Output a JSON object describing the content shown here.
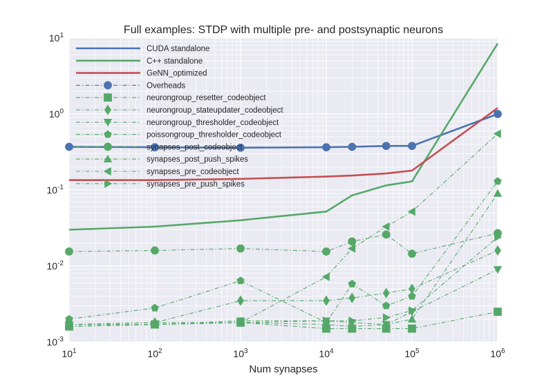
{
  "chart_data": {
    "type": "line",
    "title": "Full examples: STDP with multiple pre- and postsynaptic neurons",
    "xlabel": "Num synapses",
    "ylabel": "",
    "xscale": "log",
    "yscale": "log",
    "xlim": [
      10,
      1000000
    ],
    "ylim": [
      0.001,
      10
    ],
    "grid": true,
    "legend_position": "top-left",
    "x_ticks": [
      {
        "base": "10",
        "exp": "1"
      },
      {
        "base": "10",
        "exp": "2"
      },
      {
        "base": "10",
        "exp": "3"
      },
      {
        "base": "10",
        "exp": "4"
      },
      {
        "base": "10",
        "exp": "5"
      },
      {
        "base": "10",
        "exp": "6"
      }
    ],
    "y_ticks": [
      {
        "base": "10",
        "exp": "-3"
      },
      {
        "base": "10",
        "exp": "-2"
      },
      {
        "base": "10",
        "exp": "-1"
      },
      {
        "base": "10",
        "exp": "0"
      },
      {
        "base": "10",
        "exp": "1"
      }
    ],
    "colors": {
      "blue": "#4c72b0",
      "green": "#55a868",
      "red": "#c44e52",
      "plot_bg": "#eaeaf2"
    },
    "series": [
      {
        "name": "CUDA standalone",
        "color": "#4c72b0",
        "style": "solid",
        "marker": "none",
        "x": [
          10,
          100,
          1000,
          10000,
          20000,
          50000,
          100000,
          1000000
        ],
        "y": [
          0.37,
          0.365,
          0.36,
          0.365,
          0.37,
          0.38,
          0.38,
          1.0
        ]
      },
      {
        "name": "C++ standalone",
        "color": "#55a868",
        "style": "solid",
        "marker": "none",
        "x": [
          10,
          100,
          1000,
          10000,
          20000,
          50000,
          100000,
          1000000
        ],
        "y": [
          0.03,
          0.033,
          0.04,
          0.052,
          0.085,
          0.115,
          0.13,
          8.5
        ]
      },
      {
        "name": "GeNN_optimized",
        "color": "#c44e52",
        "style": "solid",
        "marker": "none",
        "x": [
          10,
          100,
          1000,
          10000,
          20000,
          50000,
          100000,
          1000000
        ],
        "y": [
          0.135,
          0.135,
          0.14,
          0.15,
          0.155,
          0.165,
          0.18,
          1.2
        ]
      },
      {
        "name": "Overheads",
        "color": "#4c72b0",
        "style": "dashdot",
        "marker": "circle",
        "x": [
          10,
          100,
          1000,
          10000,
          20000,
          50000,
          100000,
          1000000
        ],
        "y": [
          0.37,
          0.365,
          0.36,
          0.365,
          0.37,
          0.38,
          0.38,
          1.0
        ]
      },
      {
        "name": "neurongroup_resetter_codeobject",
        "color": "#55a868",
        "style": "dashdot",
        "marker": "square",
        "x": [
          10,
          100,
          1000,
          10000,
          20000,
          50000,
          100000,
          1000000
        ],
        "y": [
          0.0016,
          0.0017,
          0.0018,
          0.0015,
          0.0015,
          0.0015,
          0.0015,
          0.0025
        ]
      },
      {
        "name": "neurongroup_stateupdater_codeobject",
        "color": "#55a868",
        "style": "dashdot",
        "marker": "diamond",
        "x": [
          10,
          100,
          1000,
          10000,
          20000,
          50000,
          100000,
          1000000
        ],
        "y": [
          0.0017,
          0.0018,
          0.0035,
          0.0035,
          0.0038,
          0.0044,
          0.005,
          0.016
        ]
      },
      {
        "name": "neurongroup_thresholder_codeobject",
        "color": "#55a868",
        "style": "dashdot",
        "marker": "triangle-down",
        "x": [
          10,
          100,
          1000,
          10000,
          20000,
          50000,
          100000,
          1000000
        ],
        "y": [
          0.0017,
          0.0017,
          0.0019,
          0.0019,
          0.0018,
          0.0017,
          0.0025,
          0.009
        ]
      },
      {
        "name": "poissongroup_thresholder_codeobject",
        "color": "#55a868",
        "style": "dashdot",
        "marker": "pentagon",
        "x": [
          10,
          100,
          1000,
          10000,
          20000,
          50000,
          100000,
          1000000
        ],
        "y": [
          0.002,
          0.0028,
          0.0064,
          0.0018,
          0.0058,
          0.003,
          0.004,
          0.13
        ]
      },
      {
        "name": "synapses_post_codeobject",
        "color": "#55a868",
        "style": "dashdot",
        "marker": "circle",
        "x": [
          10,
          100,
          1000,
          10000,
          20000,
          50000,
          100000,
          1000000
        ],
        "y": [
          0.0155,
          0.016,
          0.017,
          0.0155,
          0.021,
          0.026,
          0.0145,
          0.027
        ]
      },
      {
        "name": "synapses_post_push_spikes",
        "color": "#55a868",
        "style": "dashdot",
        "marker": "triangle-up",
        "x": [
          10,
          100,
          1000,
          10000,
          20000,
          50000,
          100000,
          1000000
        ],
        "y": [
          0.0017,
          0.0018,
          0.0018,
          0.0017,
          0.0016,
          0.0017,
          0.002,
          0.09
        ]
      },
      {
        "name": "synapses_pre_codeobject",
        "color": "#55a868",
        "style": "dashdot",
        "marker": "triangle-left",
        "x": [
          10,
          100,
          1000,
          10000,
          20000,
          50000,
          100000,
          1000000
        ],
        "y": [
          0.0016,
          0.0017,
          0.0018,
          0.0072,
          0.017,
          0.033,
          0.052,
          0.55
        ]
      },
      {
        "name": "synapses_pre_push_spikes",
        "color": "#55a868",
        "style": "dashdot",
        "marker": "triangle-right",
        "x": [
          10,
          100,
          1000,
          10000,
          20000,
          50000,
          100000,
          1000000
        ],
        "y": [
          0.0017,
          0.0017,
          0.0018,
          0.0019,
          0.0019,
          0.0021,
          0.0026,
          0.024
        ]
      }
    ]
  }
}
